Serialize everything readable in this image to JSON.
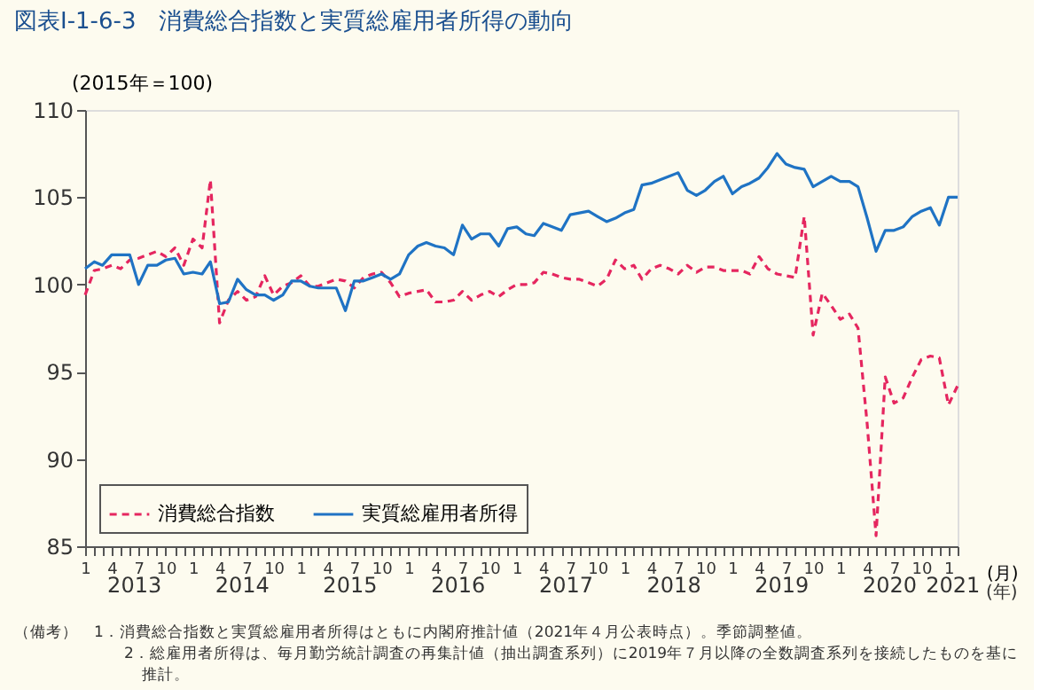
{
  "chart_data": {
    "type": "line",
    "title": "図表Ⅰ-1-6-3　消費総合指数と実質総雇用者所得の動向",
    "ylabel": "(2015年＝100)",
    "xlabel": "(月)",
    "ylim": [
      85,
      110
    ],
    "yticks": [
      85,
      90,
      95,
      100,
      105,
      110
    ],
    "xlim": [
      "2013-01",
      "2021-02"
    ],
    "grid": false,
    "legend": "bottom left",
    "marker": "none",
    "x": [
      "2013-01",
      "2013-02",
      "2013-03",
      "2013-04",
      "2013-05",
      "2013-06",
      "2013-07",
      "2013-08",
      "2013-09",
      "2013-10",
      "2013-11",
      "2013-12",
      "2014-01",
      "2014-02",
      "2014-03",
      "2014-04",
      "2014-05",
      "2014-06",
      "2014-07",
      "2014-08",
      "2014-09",
      "2014-10",
      "2014-11",
      "2014-12",
      "2015-01",
      "2015-02",
      "2015-03",
      "2015-04",
      "2015-05",
      "2015-06",
      "2015-07",
      "2015-08",
      "2015-09",
      "2015-10",
      "2015-11",
      "2015-12",
      "2016-01",
      "2016-02",
      "2016-03",
      "2016-04",
      "2016-05",
      "2016-06",
      "2016-07",
      "2016-08",
      "2016-09",
      "2016-10",
      "2016-11",
      "2016-12",
      "2017-01",
      "2017-02",
      "2017-03",
      "2017-04",
      "2017-05",
      "2017-06",
      "2017-07",
      "2017-08",
      "2017-09",
      "2017-10",
      "2017-11",
      "2017-12",
      "2018-01",
      "2018-02",
      "2018-03",
      "2018-04",
      "2018-05",
      "2018-06",
      "2018-07",
      "2018-08",
      "2018-09",
      "2018-10",
      "2018-11",
      "2018-12",
      "2019-01",
      "2019-02",
      "2019-03",
      "2019-04",
      "2019-05",
      "2019-06",
      "2019-07",
      "2019-08",
      "2019-09",
      "2019-10",
      "2019-11",
      "2019-12",
      "2020-01",
      "2020-02",
      "2020-03",
      "2020-04",
      "2020-05",
      "2020-06",
      "2020-07",
      "2020-08",
      "2020-09",
      "2020-10",
      "2020-11",
      "2020-12",
      "2021-01",
      "2021-02"
    ],
    "xticks": [
      {
        "value": "2013-01",
        "label": "1"
      },
      {
        "value": "2013-02",
        "label": null
      },
      {
        "value": "2013-03",
        "label": null
      },
      {
        "value": "2013-04",
        "label": "4"
      },
      {
        "value": "2013-05",
        "label": null
      },
      {
        "value": "2013-06",
        "label": null
      },
      {
        "value": "2013-07",
        "label": "7"
      },
      {
        "value": "2013-08",
        "label": null
      },
      {
        "value": "2013-09",
        "label": null
      },
      {
        "value": "2013-10",
        "label": "10"
      },
      {
        "value": "2013-11",
        "label": null
      },
      {
        "value": "2013-12",
        "label": null
      },
      {
        "value": "2014-01",
        "label": "1"
      },
      {
        "value": "2014-02",
        "label": null
      },
      {
        "value": "2014-03",
        "label": null
      },
      {
        "value": "2014-04",
        "label": "4"
      },
      {
        "value": "2014-05",
        "label": null
      },
      {
        "value": "2014-06",
        "label": null
      },
      {
        "value": "2014-07",
        "label": "7"
      },
      {
        "value": "2014-08",
        "label": null
      },
      {
        "value": "2014-09",
        "label": null
      },
      {
        "value": "2014-10",
        "label": "10"
      },
      {
        "value": "2014-11",
        "label": null
      },
      {
        "value": "2014-12",
        "label": null
      },
      {
        "value": "2015-01",
        "label": "1"
      },
      {
        "value": "2015-02",
        "label": null
      },
      {
        "value": "2015-03",
        "label": null
      },
      {
        "value": "2015-04",
        "label": "4"
      },
      {
        "value": "2015-05",
        "label": null
      },
      {
        "value": "2015-06",
        "label": null
      },
      {
        "value": "2015-07",
        "label": "7"
      },
      {
        "value": "2015-08",
        "label": null
      },
      {
        "value": "2015-09",
        "label": null
      },
      {
        "value": "2015-10",
        "label": "10"
      },
      {
        "value": "2015-11",
        "label": null
      },
      {
        "value": "2015-12",
        "label": null
      },
      {
        "value": "2016-01",
        "label": "1"
      },
      {
        "value": "2016-02",
        "label": null
      },
      {
        "value": "2016-03",
        "label": null
      },
      {
        "value": "2016-04",
        "label": "4"
      },
      {
        "value": "2016-05",
        "label": null
      },
      {
        "value": "2016-06",
        "label": null
      },
      {
        "value": "2016-07",
        "label": "7"
      },
      {
        "value": "2016-08",
        "label": null
      },
      {
        "value": "2016-09",
        "label": null
      },
      {
        "value": "2016-10",
        "label": "10"
      },
      {
        "value": "2016-11",
        "label": null
      },
      {
        "value": "2016-12",
        "label": null
      },
      {
        "value": "2017-01",
        "label": "1"
      },
      {
        "value": "2017-02",
        "label": null
      },
      {
        "value": "2017-03",
        "label": null
      },
      {
        "value": "2017-04",
        "label": "4"
      },
      {
        "value": "2017-05",
        "label": null
      },
      {
        "value": "2017-06",
        "label": null
      },
      {
        "value": "2017-07",
        "label": "7"
      },
      {
        "value": "2017-08",
        "label": null
      },
      {
        "value": "2017-09",
        "label": null
      },
      {
        "value": "2017-10",
        "label": "10"
      },
      {
        "value": "2017-11",
        "label": null
      },
      {
        "value": "2017-12",
        "label": null
      },
      {
        "value": "2018-01",
        "label": "1"
      },
      {
        "value": "2018-02",
        "label": null
      },
      {
        "value": "2018-03",
        "label": null
      },
      {
        "value": "2018-04",
        "label": "4"
      },
      {
        "value": "2018-05",
        "label": null
      },
      {
        "value": "2018-06",
        "label": null
      },
      {
        "value": "2018-07",
        "label": "7"
      },
      {
        "value": "2018-08",
        "label": null
      },
      {
        "value": "2018-09",
        "label": null
      },
      {
        "value": "2018-10",
        "label": "10"
      },
      {
        "value": "2018-11",
        "label": null
      },
      {
        "value": "2018-12",
        "label": null
      },
      {
        "value": "2019-01",
        "label": "1"
      },
      {
        "value": "2019-02",
        "label": null
      },
      {
        "value": "2019-03",
        "label": null
      },
      {
        "value": "2019-04",
        "label": "4"
      },
      {
        "value": "2019-05",
        "label": null
      },
      {
        "value": "2019-06",
        "label": null
      },
      {
        "value": "2019-07",
        "label": "7"
      },
      {
        "value": "2019-08",
        "label": null
      },
      {
        "value": "2019-09",
        "label": null
      },
      {
        "value": "2019-10",
        "label": "10"
      },
      {
        "value": "2019-11",
        "label": null
      },
      {
        "value": "2019-12",
        "label": null
      },
      {
        "value": "2020-01",
        "label": "1"
      },
      {
        "value": "2020-02",
        "label": null
      },
      {
        "value": "2020-03",
        "label": null
      },
      {
        "value": "2020-04",
        "label": "4"
      },
      {
        "value": "2020-05",
        "label": null
      },
      {
        "value": "2020-06",
        "label": null
      },
      {
        "value": "2020-07",
        "label": "7"
      },
      {
        "value": "2020-08",
        "label": null
      },
      {
        "value": "2020-09",
        "label": null
      },
      {
        "value": "2020-10",
        "label": "10"
      },
      {
        "value": "2020-11",
        "label": null
      },
      {
        "value": "2020-12",
        "label": null
      },
      {
        "value": "2021-01",
        "label": "1"
      },
      {
        "value": "2021-02",
        "label": null
      }
    ],
    "series": [
      {
        "name": "消費総合指数",
        "color": "#e5265f",
        "line_style": "dashed",
        "values": [
          99.4,
          100.8,
          100.9,
          101.1,
          100.9,
          101.4,
          101.5,
          101.7,
          101.9,
          101.6,
          102.1,
          101.1,
          102.6,
          102.1,
          106.0,
          97.8,
          99.1,
          99.6,
          99.1,
          99.3,
          100.5,
          99.4,
          99.9,
          100.1,
          100.5,
          99.9,
          99.9,
          100.1,
          100.3,
          100.2,
          99.8,
          100.4,
          100.6,
          100.7,
          100.1,
          99.3,
          99.5,
          99.6,
          99.7,
          99.0,
          99.0,
          99.1,
          99.6,
          99.1,
          99.4,
          99.6,
          99.3,
          99.7,
          100.0,
          100.0,
          100.1,
          100.7,
          100.6,
          100.4,
          100.3,
          100.3,
          100.1,
          99.9,
          100.3,
          101.4,
          100.9,
          101.1,
          100.3,
          100.9,
          101.1,
          100.9,
          100.6,
          101.1,
          100.7,
          101.0,
          101.0,
          100.8,
          100.8,
          100.8,
          100.6,
          101.6,
          100.9,
          100.6,
          100.5,
          100.4,
          103.9,
          97.1,
          99.5,
          98.8,
          98.0,
          98.3,
          97.5,
          92.0,
          85.6,
          94.7,
          93.2,
          93.5,
          94.7,
          95.7,
          95.9,
          95.8,
          93.1,
          94.2
        ]
      },
      {
        "name": "実質総雇用者所得",
        "color": "#1f73c4",
        "line_style": "solid",
        "values": [
          100.9,
          101.3,
          101.1,
          101.7,
          101.7,
          101.7,
          100.0,
          101.1,
          101.1,
          101.4,
          101.5,
          100.6,
          100.7,
          100.6,
          101.3,
          98.9,
          99.0,
          100.3,
          99.7,
          99.4,
          99.4,
          99.1,
          99.4,
          100.2,
          100.2,
          99.9,
          99.8,
          99.8,
          99.8,
          98.5,
          100.2,
          100.2,
          100.4,
          100.6,
          100.3,
          100.6,
          101.7,
          102.2,
          102.4,
          102.2,
          102.1,
          101.7,
          103.4,
          102.6,
          102.9,
          102.9,
          102.2,
          103.2,
          103.3,
          102.9,
          102.8,
          103.5,
          103.3,
          103.1,
          104.0,
          104.1,
          104.2,
          103.9,
          103.6,
          103.8,
          104.1,
          104.3,
          105.7,
          105.8,
          106.0,
          106.2,
          106.4,
          105.4,
          105.1,
          105.4,
          105.9,
          106.2,
          105.2,
          105.6,
          105.8,
          106.1,
          106.7,
          107.5,
          106.9,
          106.7,
          106.6,
          105.6,
          105.9,
          106.2,
          105.9,
          105.9,
          105.6,
          103.8,
          101.9,
          103.1,
          103.1,
          103.3,
          103.9,
          104.2,
          104.4,
          103.4,
          105.0,
          105.0
        ]
      }
    ],
    "annotations": [
      "2013",
      "2014",
      "2015",
      "2016",
      "2017",
      "2018",
      "2019",
      "2020",
      "2021",
      "(年)",
      "（備考）　1．消費総合指数と実質総雇用者所得はともに内閣府推計値（2021年４月公表時点）。季節調整値。",
      "2．総雇用者所得は、毎月勤労統計調査の再集計値（抽出調査系列）に2019年７月以降の全数調査系列を接続したものを基に",
      "推計。"
    ]
  }
}
